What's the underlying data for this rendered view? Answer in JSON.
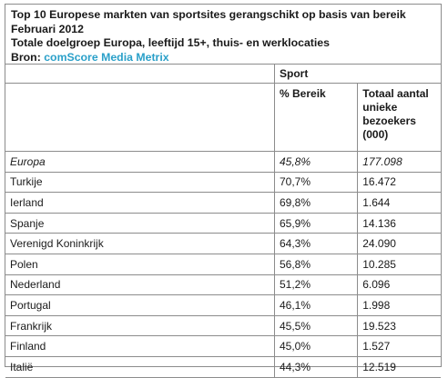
{
  "header": {
    "title": "Top 10 Europese markten van sportsites gerangschikt op basis van bereik",
    "period": "Februari 2012",
    "audience": "Totale doelgroep Europa, leeftijd 15+, thuis- en werklocaties",
    "source_label": "Bron:",
    "source_name": "comScore Media Metrix"
  },
  "table": {
    "group_header": "Sport",
    "col_reach": "% Bereik",
    "col_visitors": "Totaal aantal unieke bezoekers (000)",
    "rows": [
      {
        "market": "Europa",
        "reach": "45,8%",
        "visitors": "177.098"
      },
      {
        "market": "Turkije",
        "reach": "70,7%",
        "visitors": "16.472"
      },
      {
        "market": "Ierland",
        "reach": "69,8%",
        "visitors": "1.644"
      },
      {
        "market": "Spanje",
        "reach": "65,9%",
        "visitors": "14.136"
      },
      {
        "market": "Verenigd Koninkrijk",
        "reach": "64,3%",
        "visitors": "24.090"
      },
      {
        "market": "Polen",
        "reach": "56,8%",
        "visitors": "10.285"
      },
      {
        "market": "Nederland",
        "reach": "51,2%",
        "visitors": "6.096"
      },
      {
        "market": "Portugal",
        "reach": "46,1%",
        "visitors": "1.998"
      },
      {
        "market": "Frankrijk",
        "reach": "45,5%",
        "visitors": "19.523"
      },
      {
        "market": "Finland",
        "reach": "45,0%",
        "visitors": "1.527"
      },
      {
        "market": "Italië",
        "reach": "44,3%",
        "visitors": "12.519"
      }
    ]
  }
}
